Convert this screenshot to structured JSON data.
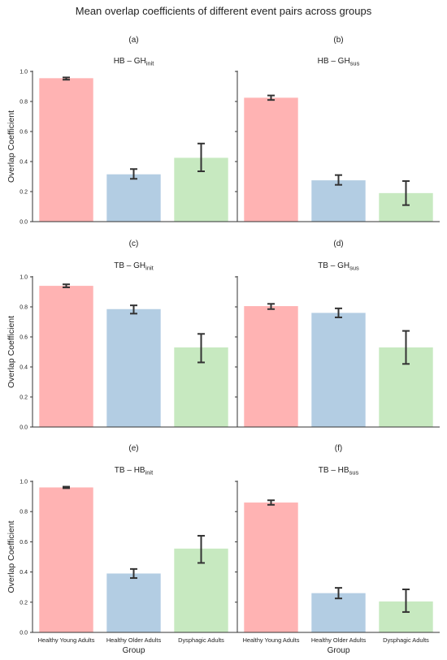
{
  "figure_title": "Mean overlap coefficients of different event pairs across groups",
  "colors": {
    "Healthy Young Adults": "#ffb3b3",
    "Healthy Older Adults": "#b3cde3",
    "Dysphagic Adults": "#c7e9c0",
    "errorbar": "#333333",
    "axis": "#333333"
  },
  "chart_data": [
    {
      "type": "bar",
      "panel_label": "(a)",
      "title_main": "HB – GH",
      "title_sub": "init",
      "categories": [
        "Healthy Young Adults",
        "Healthy Older Adults",
        "Dysphagic Adults"
      ],
      "values": [
        0.955,
        0.315,
        0.425
      ],
      "errors": [
        [
          0.945,
          0.96
        ],
        [
          0.285,
          0.35
        ],
        [
          0.335,
          0.52
        ]
      ],
      "ylabel": "Overlap Coefficient",
      "xlabel": "",
      "ylim": [
        0,
        1.0
      ],
      "yticks": [
        "0.0",
        "0.2",
        "0.4",
        "0.6",
        "0.8",
        "1.0"
      ]
    },
    {
      "type": "bar",
      "panel_label": "(b)",
      "title_main": "HB – GH",
      "title_sub": "sus",
      "categories": [
        "Healthy Young Adults",
        "Healthy Older Adults",
        "Dysphagic Adults"
      ],
      "values": [
        0.825,
        0.275,
        0.19
      ],
      "errors": [
        [
          0.81,
          0.84
        ],
        [
          0.245,
          0.31
        ],
        [
          0.11,
          0.27
        ]
      ],
      "ylabel": "",
      "xlabel": "",
      "ylim": [
        0,
        1.0
      ],
      "yticks": [
        "",
        "",
        "",
        "",
        "",
        ""
      ]
    },
    {
      "type": "bar",
      "panel_label": "(c)",
      "title_main": "TB – GH",
      "title_sub": "init",
      "categories": [
        "Healthy Young Adults",
        "Healthy Older Adults",
        "Dysphagic Adults"
      ],
      "values": [
        0.94,
        0.785,
        0.53
      ],
      "errors": [
        [
          0.93,
          0.95
        ],
        [
          0.755,
          0.81
        ],
        [
          0.43,
          0.62
        ]
      ],
      "ylabel": "Overlap Coefficient",
      "xlabel": "",
      "ylim": [
        0,
        1.0
      ],
      "yticks": [
        "0.0",
        "0.2",
        "0.4",
        "0.6",
        "0.8",
        "1.0"
      ]
    },
    {
      "type": "bar",
      "panel_label": "(d)",
      "title_main": "TB – GH",
      "title_sub": "sus",
      "categories": [
        "Healthy Young Adults",
        "Healthy Older Adults",
        "Dysphagic Adults"
      ],
      "values": [
        0.805,
        0.76,
        0.53
      ],
      "errors": [
        [
          0.785,
          0.82
        ],
        [
          0.73,
          0.79
        ],
        [
          0.42,
          0.64
        ]
      ],
      "ylabel": "",
      "xlabel": "",
      "ylim": [
        0,
        1.0
      ],
      "yticks": [
        "",
        "",
        "",
        "",
        "",
        ""
      ]
    },
    {
      "type": "bar",
      "panel_label": "(e)",
      "title_main": "TB – HB",
      "title_sub": "init",
      "categories": [
        "Healthy Young Adults",
        "Healthy Older Adults",
        "Dysphagic Adults"
      ],
      "values": [
        0.96,
        0.39,
        0.555
      ],
      "errors": [
        [
          0.955,
          0.965
        ],
        [
          0.36,
          0.42
        ],
        [
          0.46,
          0.64
        ]
      ],
      "ylabel": "Overlap Coefficient",
      "xlabel": "Group",
      "ylim": [
        0,
        1.0
      ],
      "yticks": [
        "0.0",
        "0.2",
        "0.4",
        "0.6",
        "0.8",
        "1.0"
      ]
    },
    {
      "type": "bar",
      "panel_label": "(f)",
      "title_main": "TB – HB",
      "title_sub": "sus",
      "categories": [
        "Healthy Young Adults",
        "Healthy Older Adults",
        "Dysphagic Adults"
      ],
      "values": [
        0.86,
        0.26,
        0.205
      ],
      "errors": [
        [
          0.845,
          0.875
        ],
        [
          0.225,
          0.295
        ],
        [
          0.135,
          0.285
        ]
      ],
      "ylabel": "",
      "xlabel": "Group",
      "ylim": [
        0,
        1.0
      ],
      "yticks": [
        "",
        "",
        "",
        "",
        "",
        ""
      ]
    }
  ]
}
